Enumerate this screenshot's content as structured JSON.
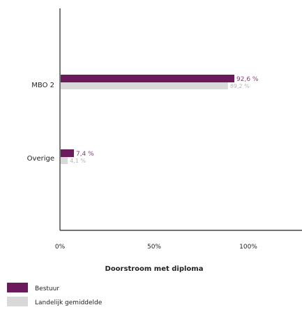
{
  "chart_data": {
    "type": "bar",
    "orientation": "horizontal",
    "categories": [
      "MBO 2",
      "Overige"
    ],
    "series": [
      {
        "name": "Bestuur",
        "values": [
          92.6,
          7.4
        ],
        "labels": [
          "92,6 %",
          "7,4 %"
        ],
        "color": "#6b1a5c"
      },
      {
        "name": "Landelijk gemiddelde",
        "values": [
          89.2,
          4.1
        ],
        "labels": [
          "89,2 %",
          "4,1 %"
        ],
        "color": "#d9d9d9"
      }
    ],
    "xlabel": "Doorstroom met diploma",
    "xlim": [
      0,
      100
    ],
    "xticks": [
      0,
      50,
      100
    ],
    "xtick_labels": [
      "0%",
      "50%",
      "100%"
    ],
    "grid": false,
    "legend_position": "bottom-left"
  },
  "colors": {
    "label_bestuur": "#8a3b7b",
    "label_landelijk": "#b5b5b5",
    "axis": "#222222"
  }
}
